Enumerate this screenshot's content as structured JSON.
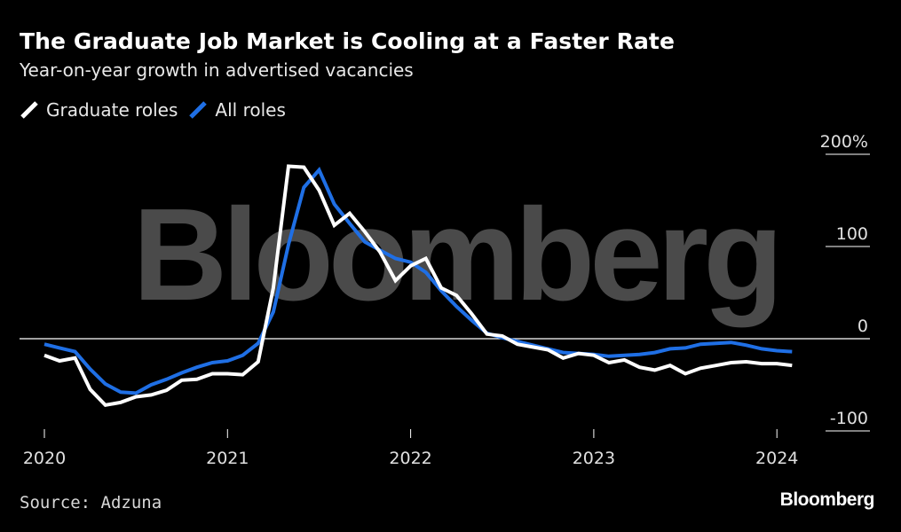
{
  "header": {
    "title": "The Graduate Job Market is Cooling at a Faster Rate",
    "subtitle": "Year-on-year growth in advertised vacancies"
  },
  "footer": {
    "source": "Source: Adzuna",
    "brand": "Bloomberg"
  },
  "watermark": "Bloomberg",
  "colors": {
    "background": "#000000",
    "graduate": "#ffffff",
    "all": "#1f6fe5",
    "grid": "#ffffff",
    "watermark": "#4a4a4a"
  },
  "chart_data": {
    "type": "line",
    "title": "The Graduate Job Market is Cooling at a Faster Rate",
    "subtitle": "Year-on-year growth in advertised vacancies",
    "xlabel": "",
    "ylabel": "",
    "xlim": [
      2020.0,
      2024.17
    ],
    "ylim": [
      -100,
      200
    ],
    "yticks": [
      {
        "value": 200,
        "label": "200%"
      },
      {
        "value": 100,
        "label": "100"
      },
      {
        "value": 0,
        "label": "0"
      },
      {
        "value": -100,
        "label": "-100"
      }
    ],
    "xticks": [
      {
        "value": 2020,
        "label": "2020"
      },
      {
        "value": 2021,
        "label": "2021"
      },
      {
        "value": 2022,
        "label": "2022"
      },
      {
        "value": 2023,
        "label": "2023"
      },
      {
        "value": 2024,
        "label": "2024"
      }
    ],
    "legend_position": "top-left",
    "x": [
      2020.0,
      2020.083,
      2020.167,
      2020.25,
      2020.333,
      2020.417,
      2020.5,
      2020.583,
      2020.667,
      2020.75,
      2020.833,
      2020.917,
      2021.0,
      2021.083,
      2021.167,
      2021.25,
      2021.333,
      2021.417,
      2021.5,
      2021.583,
      2021.667,
      2021.75,
      2021.833,
      2021.917,
      2022.0,
      2022.083,
      2022.167,
      2022.25,
      2022.333,
      2022.417,
      2022.5,
      2022.583,
      2022.667,
      2022.75,
      2022.833,
      2022.917,
      2023.0,
      2023.083,
      2023.167,
      2023.25,
      2023.333,
      2023.417,
      2023.5,
      2023.583,
      2023.667,
      2023.75,
      2023.833,
      2023.917,
      2024.0,
      2024.083
    ],
    "series": [
      {
        "name": "Graduate roles",
        "color": "#ffffff",
        "values": [
          -18,
          -24,
          -21,
          -55,
          -72,
          -69,
          -63,
          -61,
          -56,
          -45,
          -44,
          -38,
          -38,
          -39,
          -25,
          55,
          187,
          186,
          161,
          123,
          136,
          116,
          94,
          63,
          79,
          87,
          55,
          47,
          27,
          5,
          3,
          -6,
          -9,
          -12,
          -21,
          -16,
          -18,
          -26,
          -23,
          -31,
          -34,
          -29,
          -38,
          -32,
          -29,
          -26,
          -25,
          -27,
          -27,
          -29
        ]
      },
      {
        "name": "All roles",
        "color": "#1f6fe5",
        "values": [
          -6,
          -10,
          -14,
          -33,
          -49,
          -58,
          -59,
          -50,
          -44,
          -37,
          -31,
          -26,
          -24,
          -18,
          -5,
          29,
          102,
          164,
          183,
          146,
          125,
          105,
          96,
          87,
          83,
          72,
          52,
          35,
          20,
          6,
          1,
          -3,
          -7,
          -11,
          -15,
          -16,
          -17,
          -19,
          -18,
          -17,
          -15,
          -11,
          -10,
          -6,
          -5,
          -4,
          -7,
          -11,
          -13,
          -14
        ]
      }
    ]
  }
}
